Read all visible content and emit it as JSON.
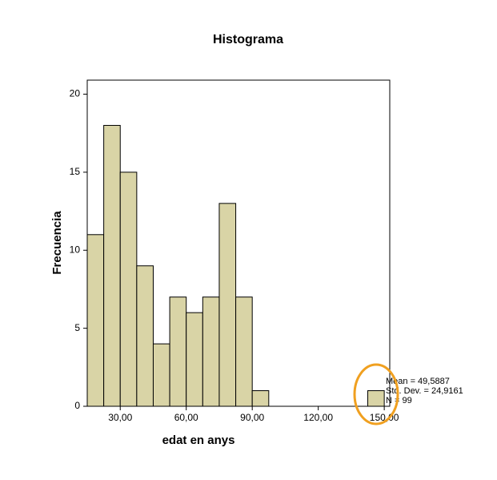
{
  "chart_data": {
    "type": "histogram",
    "title": "Histograma",
    "x_label": "edat en anys",
    "y_label": "Frecuencia",
    "bins": [
      15,
      22.5,
      30,
      37.5,
      45,
      52.5,
      60,
      67.5,
      75,
      82.5,
      90,
      97.5,
      105,
      112.5,
      120,
      127.5,
      135,
      142.5,
      150
    ],
    "values": [
      11,
      18,
      15,
      9,
      4,
      7,
      6,
      7,
      13,
      7,
      1,
      0,
      0,
      0,
      0,
      0,
      0,
      1
    ],
    "color": "#d9d4a6",
    "xlim": [
      15,
      152.5
    ],
    "xticks": [
      {
        "value": 30,
        "label": "30,00"
      },
      {
        "value": 60,
        "label": "60,00"
      },
      {
        "value": 90,
        "label": "90,00"
      },
      {
        "value": 120,
        "label": "120,00"
      },
      {
        "value": 150,
        "label": "150,00"
      }
    ],
    "ylim": [
      0,
      20.9
    ],
    "yticks": [
      0,
      5,
      10,
      15,
      20
    ],
    "stats": [
      "Mean = 49,5887",
      "Std. Dev. = 24,9161",
      "N = 99"
    ]
  }
}
